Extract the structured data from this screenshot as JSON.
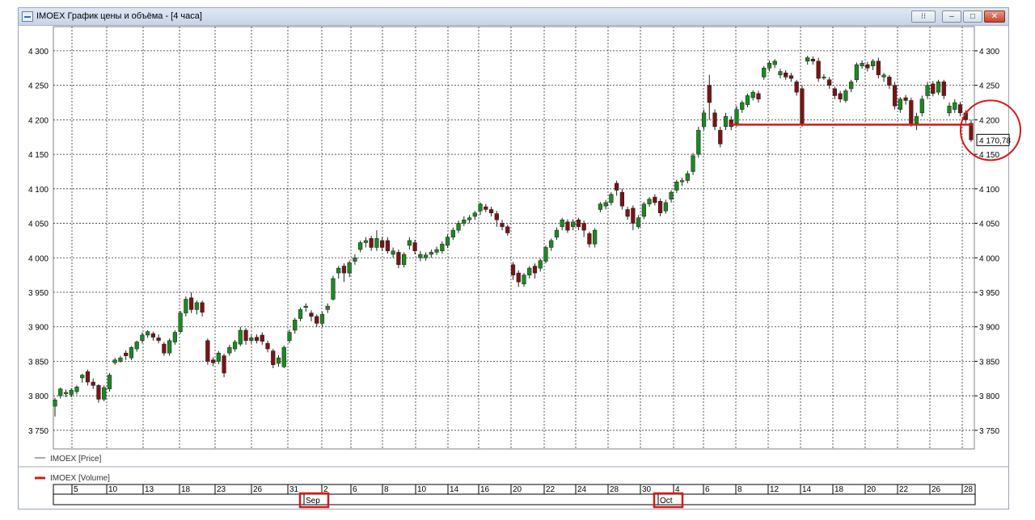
{
  "window": {
    "title": "IMOEX График цены и объёма - [4 часа]",
    "buttons": {
      "pin": "⁝⁝",
      "minimize": "–",
      "maximize": "□",
      "close": "✕"
    }
  },
  "chart_data": {
    "type": "candlestick",
    "y_ticks": [
      "4 300",
      "4 250",
      "4 200",
      "4 150",
      "4 100",
      "4 050",
      "4 000",
      "3 950",
      "3 900",
      "3 850",
      "3 800",
      "3 750"
    ],
    "y_tick_values": [
      4300,
      4250,
      4200,
      4150,
      4100,
      4050,
      4000,
      3950,
      3900,
      3850,
      3800,
      3750
    ],
    "ylim": [
      3723,
      4335
    ],
    "grid": true,
    "last_price_label": "4 170,78",
    "last_price": 4170.78,
    "support_level": 4193,
    "legend": {
      "price": "IMOEX [Price]",
      "volume": "IMOEX [Volume]"
    },
    "x_ticks": [
      "5",
      "10",
      "13",
      "18",
      "23",
      "26",
      "31",
      "2",
      "6",
      "8",
      "10",
      "14",
      "16",
      "20",
      "22",
      "24",
      "28",
      "30",
      "4",
      "6",
      "8",
      "12",
      "14",
      "18",
      "20",
      "22",
      "26",
      "28"
    ],
    "x_months": [
      "Sep",
      "Oct"
    ],
    "colors": {
      "up": "#1a8a22",
      "down": "#7a1414",
      "annotation": "#d41919",
      "grid": "#000000"
    },
    "candles": [
      [
        3785,
        3794,
        3770,
        3797
      ],
      [
        3800,
        3810,
        3796,
        3812
      ],
      [
        3803,
        3805,
        3798,
        3809
      ],
      [
        3802,
        3808,
        3798,
        3811
      ],
      [
        3806,
        3813,
        3802,
        3815
      ],
      [
        3826,
        3830,
        3819,
        3832
      ],
      [
        3835,
        3820,
        3815,
        3838
      ],
      [
        3820,
        3815,
        3810,
        3825
      ],
      [
        3815,
        3795,
        3790,
        3817
      ],
      [
        3795,
        3812,
        3792,
        3815
      ],
      [
        3810,
        3830,
        3806,
        3833
      ],
      [
        3848,
        3852,
        3845,
        3855
      ],
      [
        3850,
        3855,
        3848,
        3858
      ],
      [
        3862,
        3858,
        3852,
        3866
      ],
      [
        3855,
        3870,
        3852,
        3872
      ],
      [
        3868,
        3878,
        3864,
        3880
      ],
      [
        3880,
        3888,
        3876,
        3892
      ],
      [
        3888,
        3893,
        3884,
        3895
      ],
      [
        3890,
        3885,
        3880,
        3893
      ],
      [
        3884,
        3880,
        3876,
        3889
      ],
      [
        3875,
        3862,
        3858,
        3878
      ],
      [
        3862,
        3880,
        3858,
        3883
      ],
      [
        3878,
        3892,
        3874,
        3895
      ],
      [
        3893,
        3920,
        3890,
        3923
      ],
      [
        3920,
        3940,
        3915,
        3944
      ],
      [
        3942,
        3925,
        3920,
        3950
      ],
      [
        3925,
        3935,
        3918,
        3938
      ],
      [
        3935,
        3921,
        3915,
        3938
      ],
      [
        3880,
        3850,
        3845,
        3883
      ],
      [
        3852,
        3848,
        3843,
        3856
      ],
      [
        3850,
        3862,
        3846,
        3865
      ],
      [
        3858,
        3833,
        3827,
        3861
      ],
      [
        3862,
        3870,
        3858,
        3874
      ],
      [
        3868,
        3878,
        3864,
        3881
      ],
      [
        3875,
        3895,
        3872,
        3900
      ],
      [
        3895,
        3880,
        3874,
        3898
      ],
      [
        3880,
        3884,
        3876,
        3888
      ],
      [
        3885,
        3880,
        3876,
        3889
      ],
      [
        3888,
        3879,
        3874,
        3892
      ],
      [
        3876,
        3868,
        3863,
        3880
      ],
      [
        3865,
        3845,
        3840,
        3868
      ],
      [
        3847,
        3855,
        3842,
        3859
      ],
      [
        3842,
        3870,
        3840,
        3873
      ],
      [
        3880,
        3892,
        3876,
        3896
      ],
      [
        3895,
        3910,
        3890,
        3913
      ],
      [
        3912,
        3925,
        3908,
        3928
      ],
      [
        3928,
        3930,
        3922,
        3934
      ],
      [
        3920,
        3915,
        3908,
        3924
      ],
      [
        3915,
        3905,
        3900,
        3918
      ],
      [
        3905,
        3918,
        3900,
        3922
      ],
      [
        3925,
        3930,
        3920,
        3934
      ],
      [
        3940,
        3970,
        3938,
        3974
      ],
      [
        3978,
        3985,
        3970,
        3988
      ],
      [
        3988,
        3978,
        3965,
        3992
      ],
      [
        3978,
        3993,
        3972,
        3996
      ],
      [
        3995,
        4000,
        3990,
        4005
      ],
      [
        4012,
        4022,
        4008,
        4025
      ],
      [
        4022,
        4025,
        4015,
        4030
      ],
      [
        4028,
        4015,
        4010,
        4032
      ],
      [
        4015,
        4028,
        4010,
        4040
      ],
      [
        4025,
        4015,
        4010,
        4030
      ],
      [
        4025,
        4010,
        4006,
        4030
      ],
      [
        4005,
        4010,
        4000,
        4015
      ],
      [
        4008,
        3990,
        3985,
        4012
      ],
      [
        3990,
        4005,
        3986,
        4008
      ],
      [
        4018,
        4025,
        4012,
        4030
      ],
      [
        4022,
        4010,
        4005,
        4026
      ],
      [
        4000,
        4005,
        3995,
        4010
      ],
      [
        4000,
        4004,
        3996,
        4008
      ],
      [
        4005,
        4008,
        4000,
        4012
      ],
      [
        4008,
        4012,
        4004,
        4016
      ],
      [
        4010,
        4020,
        4006,
        4024
      ],
      [
        4018,
        4030,
        4014,
        4034
      ],
      [
        4030,
        4040,
        4026,
        4044
      ],
      [
        4040,
        4050,
        4036,
        4054
      ],
      [
        4050,
        4055,
        4046,
        4060
      ],
      [
        4055,
        4058,
        4050,
        4062
      ],
      [
        4060,
        4065,
        4055,
        4068
      ],
      [
        4068,
        4078,
        4062,
        4080
      ],
      [
        4074,
        4070,
        4066,
        4078
      ],
      [
        4070,
        4065,
        4060,
        4074
      ],
      [
        4064,
        4055,
        4045,
        4068
      ],
      [
        4050,
        4045,
        4040,
        4055
      ],
      [
        4045,
        4036,
        4032,
        4048
      ],
      [
        3990,
        3975,
        3968,
        3994
      ],
      [
        3978,
        3965,
        3958,
        3982
      ],
      [
        3962,
        3975,
        3958,
        3978
      ],
      [
        3975,
        3985,
        3970,
        3988
      ],
      [
        3988,
        3978,
        3970,
        3992
      ],
      [
        3985,
        3996,
        3980,
        3999
      ],
      [
        3995,
        4015,
        3992,
        4018
      ],
      [
        4015,
        4025,
        4010,
        4028
      ],
      [
        4030,
        4040,
        4026,
        4044
      ],
      [
        4045,
        4055,
        4040,
        4058
      ],
      [
        4052,
        4040,
        4036,
        4056
      ],
      [
        4045,
        4052,
        4040,
        4056
      ],
      [
        4055,
        4045,
        4040,
        4058
      ],
      [
        4050,
        4040,
        4030,
        4054
      ],
      [
        4035,
        4020,
        4015,
        4038
      ],
      [
        4020,
        4040,
        4015,
        4043
      ],
      [
        4070,
        4078,
        4066,
        4081
      ],
      [
        4075,
        4080,
        4070,
        4084
      ],
      [
        4080,
        4092,
        4076,
        4095
      ],
      [
        4108,
        4098,
        4090,
        4112
      ],
      [
        4095,
        4075,
        4070,
        4100
      ],
      [
        4070,
        4060,
        4055,
        4074
      ],
      [
        4072,
        4050,
        4040,
        4076
      ],
      [
        4045,
        4058,
        4042,
        4062
      ],
      [
        4060,
        4078,
        4056,
        4081
      ],
      [
        4078,
        4085,
        4074,
        4088
      ],
      [
        4088,
        4080,
        4076,
        4092
      ],
      [
        4082,
        4065,
        4060,
        4086
      ],
      [
        4068,
        4080,
        4064,
        4084
      ],
      [
        4085,
        4095,
        4080,
        4098
      ],
      [
        4098,
        4110,
        4094,
        4113
      ],
      [
        4110,
        4112,
        4104,
        4116
      ],
      [
        4112,
        4122,
        4108,
        4126
      ],
      [
        4125,
        4148,
        4120,
        4152
      ],
      [
        4150,
        4185,
        4145,
        4190
      ],
      [
        4190,
        4210,
        4185,
        4215
      ],
      [
        4250,
        4225,
        4200,
        4265
      ],
      [
        4210,
        4190,
        4185,
        4215
      ],
      [
        4185,
        4165,
        4160,
        4190
      ],
      [
        4190,
        4205,
        4185,
        4210
      ],
      [
        4200,
        4190,
        4185,
        4205
      ],
      [
        4195,
        4215,
        4190,
        4220
      ],
      [
        4215,
        4225,
        4210,
        4228
      ],
      [
        4222,
        4235,
        4218,
        4238
      ],
      [
        4232,
        4240,
        4228,
        4243
      ],
      [
        4238,
        4230,
        4225,
        4242
      ],
      [
        4262,
        4275,
        4258,
        4278
      ],
      [
        4275,
        4282,
        4270,
        4286
      ],
      [
        4280,
        4285,
        4275,
        4288
      ],
      [
        4265,
        4270,
        4260,
        4274
      ],
      [
        4268,
        4262,
        4258,
        4272
      ],
      [
        4264,
        4260,
        4255,
        4268
      ],
      [
        4255,
        4240,
        4235,
        4258
      ],
      [
        4245,
        4195,
        4190,
        4250
      ],
      [
        4285,
        4290,
        4280,
        4293
      ],
      [
        4288,
        4285,
        4280,
        4292
      ],
      [
        4285,
        4260,
        4255,
        4290
      ],
      [
        4262,
        4262,
        4258,
        4266
      ],
      [
        4258,
        4250,
        4245,
        4262
      ],
      [
        4245,
        4235,
        4230,
        4248
      ],
      [
        4238,
        4230,
        4225,
        4242
      ],
      [
        4228,
        4242,
        4225,
        4245
      ],
      [
        4245,
        4255,
        4240,
        4258
      ],
      [
        4258,
        4280,
        4254,
        4283
      ],
      [
        4278,
        4282,
        4274,
        4286
      ],
      [
        4280,
        4275,
        4270,
        4284
      ],
      [
        4278,
        4285,
        4272,
        4288
      ],
      [
        4285,
        4265,
        4260,
        4290
      ],
      [
        4262,
        4265,
        4255,
        4268
      ],
      [
        4262,
        4250,
        4245,
        4265
      ],
      [
        4250,
        4220,
        4215,
        4255
      ],
      [
        4215,
        4230,
        4210,
        4233
      ],
      [
        4232,
        4228,
        4222,
        4236
      ],
      [
        4228,
        4195,
        4190,
        4232
      ],
      [
        4195,
        4205,
        4185,
        4210
      ],
      [
        4210,
        4230,
        4205,
        4235
      ],
      [
        4235,
        4250,
        4230,
        4255
      ],
      [
        4252,
        4238,
        4234,
        4256
      ],
      [
        4240,
        4255,
        4236,
        4258
      ],
      [
        4255,
        4235,
        4230,
        4258
      ],
      [
        4210,
        4220,
        4205,
        4225
      ],
      [
        4215,
        4225,
        4210,
        4230
      ],
      [
        4222,
        4210,
        4205,
        4226
      ],
      [
        4210,
        4200,
        4195,
        4214
      ],
      [
        4195,
        4171,
        4168,
        4200
      ]
    ]
  }
}
